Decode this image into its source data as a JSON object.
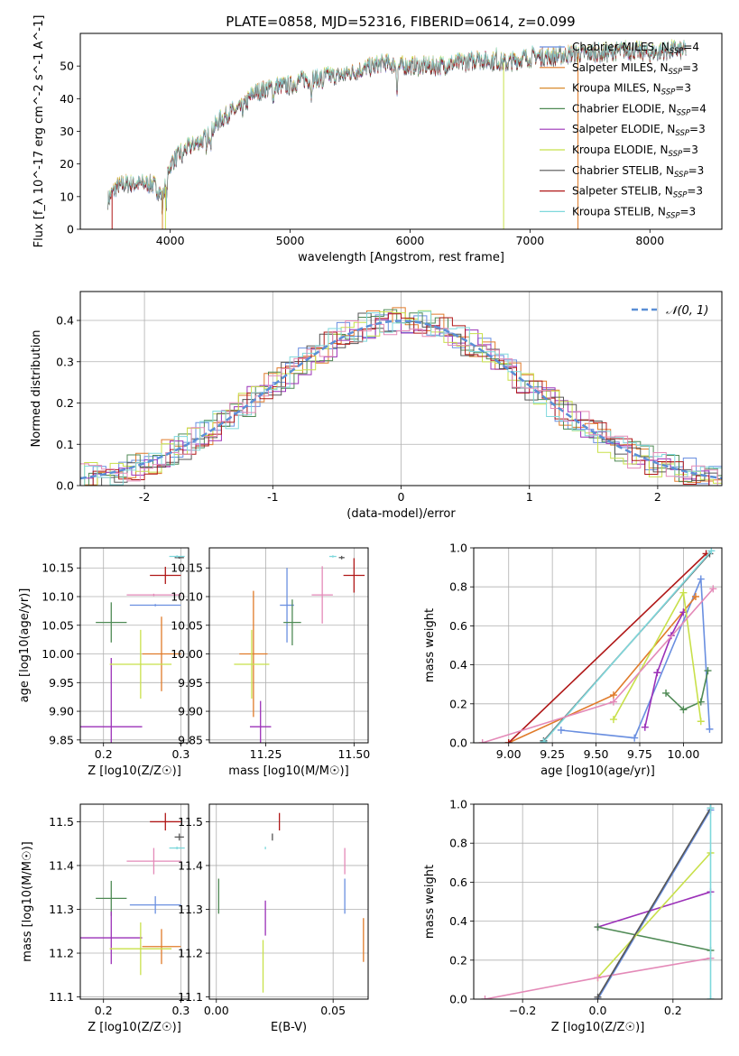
{
  "title": "PLATE=0858, MJD=52316, FIBERID=0614, z=0.099",
  "colors": {
    "Chabrier MILES": "#6a8fe0",
    "Salpeter MILES": "#e07b2a",
    "Kroupa MILES": "#d98a2e",
    "Chabrier ELODIE": "#4f8a55",
    "Salpeter ELODIE": "#9b30b8",
    "Kroupa ELODIE": "#c8e04a",
    "Chabrier STELIB": "#555555",
    "Salpeter STELIB": "#b01818",
    "Kroupa STELIB": "#7fd8dc",
    "pink": "#e48ab8",
    "normal_curve": "#5b8fd6",
    "grid": "#b0b0b0"
  },
  "chart_data": [
    {
      "id": "spectrum",
      "type": "line",
      "xlabel": "wavelength [Angstrom, rest frame]",
      "ylabel": "Flux [f_λ 10^-17 erg cm^-2 s^-1 A^-1]",
      "xlim": [
        3250,
        8600
      ],
      "ylim": [
        0,
        60
      ],
      "xticks": [
        4000,
        5000,
        6000,
        7000,
        8000
      ],
      "yticks": [
        0,
        10,
        20,
        30,
        40,
        50
      ],
      "legend_position": "top-right",
      "series": [
        {
          "name": "Chabrier MILES, N_SSP=4"
        },
        {
          "name": "Salpeter MILES, N_SSP=3"
        },
        {
          "name": "Kroupa MILES, N_SSP=3"
        },
        {
          "name": "Chabrier ELODIE, N_SSP=4"
        },
        {
          "name": "Salpeter ELODIE, N_SSP=3"
        },
        {
          "name": "Kroupa ELODIE, N_SSP=3"
        },
        {
          "name": "Chabrier STELIB, N_SSP=3"
        },
        {
          "name": "Salpeter STELIB, N_SSP=3"
        },
        {
          "name": "Kroupa STELIB, N_SSP=3"
        }
      ],
      "continuum": {
        "x": [
          3480,
          3550,
          3650,
          3750,
          3850,
          3920,
          3960,
          4000,
          4100,
          4200,
          4300,
          4400,
          4500,
          4600,
          4700,
          4800,
          4900,
          5000,
          5100,
          5200,
          5300,
          5400,
          5500,
          5600,
          5700,
          5800,
          5900,
          6000,
          6200,
          6400,
          6600,
          6800,
          7000,
          7200,
          7400,
          7600,
          7800,
          8000,
          8200,
          8300
        ],
        "y": [
          9,
          13,
          14,
          14,
          14,
          11,
          13,
          20,
          24,
          26,
          28,
          33,
          36,
          37,
          42,
          43,
          44,
          44,
          46,
          46,
          47,
          47,
          48,
          49,
          50,
          51,
          50,
          50,
          50,
          51,
          52,
          51,
          53,
          53,
          54,
          54,
          55,
          54,
          55,
          55
        ]
      }
    },
    {
      "id": "residuals",
      "type": "histogram",
      "xlabel": "(data-model)/error",
      "ylabel": "Normed distribution",
      "xlim": [
        -2.5,
        2.5
      ],
      "ylim": [
        0,
        0.47
      ],
      "xticks": [
        -2,
        -1,
        0,
        1,
        2
      ],
      "yticks": [
        0.0,
        0.1,
        0.2,
        0.3,
        0.4
      ],
      "legend": "𝒩(0, 1)",
      "legend_position": "top-right",
      "bin_width": 0.1,
      "series_count": 9
    },
    {
      "id": "age_vs_Z",
      "type": "scatter",
      "xlabel": "Z [log10(Z/Z☉)]",
      "ylabel": "age [log10(age/yr)]",
      "xlim": [
        0.17,
        0.31
      ],
      "ylim": [
        9.845,
        10.185
      ],
      "xticks": [
        0.2,
        0.3
      ],
      "yticks": [
        9.85,
        9.9,
        9.95,
        10.0,
        10.05,
        10.1,
        10.15
      ],
      "points": [
        {
          "series": "Chabrier MILES",
          "x": 0.267,
          "y": 10.085,
          "xerr": 0.033,
          "yerr": 0.002
        },
        {
          "series": "Salpeter MILES",
          "x": 0.275,
          "y": 10.0,
          "xerr": 0.025,
          "yerr": 0.065
        },
        {
          "series": "Chabrier ELODIE",
          "x": 0.21,
          "y": 10.055,
          "xerr": 0.02,
          "yerr": 0.035
        },
        {
          "series": "Salpeter ELODIE",
          "x": 0.21,
          "y": 9.873,
          "xerr": 0.04,
          "yerr": 0.12
        },
        {
          "series": "Kroupa ELODIE",
          "x": 0.248,
          "y": 9.982,
          "xerr": 0.04,
          "yerr": 0.06
        },
        {
          "series": "Chabrier STELIB",
          "x": 0.298,
          "y": 10.168,
          "xerr": 0.006,
          "yerr": 0.002
        },
        {
          "series": "Salpeter STELIB",
          "x": 0.28,
          "y": 10.137,
          "xerr": 0.02,
          "yerr": 0.015
        },
        {
          "series": "Kroupa STELIB",
          "x": 0.295,
          "y": 10.17,
          "xerr": 0.01,
          "yerr": 0.002
        },
        {
          "series": "pink",
          "x": 0.265,
          "y": 10.103,
          "xerr": 0.035,
          "yerr": 0.002
        }
      ]
    },
    {
      "id": "age_vs_mass",
      "type": "scatter",
      "xlabel": "mass [log10(M/M☉)]",
      "ylabel": "",
      "xlim": [
        11.09,
        11.54
      ],
      "ylim": [
        9.845,
        10.185
      ],
      "xticks": [
        11.25,
        11.5
      ],
      "yticks": [
        9.85,
        9.9,
        9.95,
        10.0,
        10.05,
        10.1,
        10.15
      ],
      "points": [
        {
          "series": "Chabrier MILES",
          "x": 11.31,
          "y": 10.085,
          "xerr": 0.02,
          "yerr": 0.065
        },
        {
          "series": "Salpeter MILES",
          "x": 11.215,
          "y": 10.0,
          "xerr": 0.04,
          "yerr": 0.11
        },
        {
          "series": "Chabrier ELODIE",
          "x": 11.325,
          "y": 10.055,
          "xerr": 0.025,
          "yerr": 0.04
        },
        {
          "series": "Salpeter ELODIE",
          "x": 11.235,
          "y": 9.873,
          "xerr": 0.03,
          "yerr": 0.045
        },
        {
          "series": "Kroupa ELODIE",
          "x": 11.21,
          "y": 9.982,
          "xerr": 0.05,
          "yerr": 0.06
        },
        {
          "series": "Chabrier STELIB",
          "x": 11.465,
          "y": 10.168,
          "xerr": 0.008,
          "yerr": 0.003
        },
        {
          "series": "Salpeter STELIB",
          "x": 11.5,
          "y": 10.137,
          "xerr": 0.03,
          "yerr": 0.03
        },
        {
          "series": "Kroupa STELIB",
          "x": 11.44,
          "y": 10.17,
          "xerr": 0.01,
          "yerr": 0.002
        },
        {
          "series": "pink",
          "x": 11.41,
          "y": 10.103,
          "xerr": 0.03,
          "yerr": 0.05
        }
      ]
    },
    {
      "id": "mass_weight_vs_age",
      "type": "line",
      "xlabel": "age [log10(age/yr)]",
      "ylabel": "mass weight",
      "xlim": [
        8.8,
        10.22
      ],
      "ylim": [
        0,
        1.0
      ],
      "xticks": [
        9.0,
        9.25,
        9.5,
        9.75,
        10.0
      ],
      "yticks": [
        0.0,
        0.2,
        0.4,
        0.6,
        0.8,
        1.0
      ],
      "series": [
        {
          "name": "Chabrier MILES",
          "x": [
            9.3,
            9.72,
            10.1,
            10.15
          ],
          "y": [
            0.065,
            0.025,
            0.84,
            0.07
          ]
        },
        {
          "name": "Salpeter MILES",
          "x": [
            9.0,
            9.6,
            10.07
          ],
          "y": [
            0.0,
            0.245,
            0.75
          ]
        },
        {
          "name": "Chabrier ELODIE",
          "x": [
            9.9,
            10.0,
            10.1,
            10.14
          ],
          "y": [
            0.255,
            0.17,
            0.21,
            0.37
          ]
        },
        {
          "name": "Salpeter ELODIE",
          "x": [
            9.78,
            9.85,
            9.93,
            10.0
          ],
          "y": [
            0.08,
            0.36,
            0.55,
            0.67
          ]
        },
        {
          "name": "Kroupa ELODIE",
          "x": [
            9.6,
            10.0,
            10.1
          ],
          "y": [
            0.12,
            0.77,
            0.11
          ]
        },
        {
          "name": "Chabrier STELIB",
          "x": [
            9.2,
            10.15
          ],
          "y": [
            0.01,
            0.97
          ]
        },
        {
          "name": "Salpeter STELIB",
          "x": [
            9.0,
            10.13
          ],
          "y": [
            0.0,
            0.97
          ]
        },
        {
          "name": "Kroupa STELIB",
          "x": [
            9.2,
            10.16
          ],
          "y": [
            0.005,
            0.985
          ]
        },
        {
          "name": "pink",
          "x": [
            8.85,
            9.6,
            10.17
          ],
          "y": [
            0.0,
            0.21,
            0.79
          ]
        }
      ]
    },
    {
      "id": "mass_vs_Z",
      "type": "scatter",
      "xlabel": "Z [log10(Z/Z☉)]",
      "ylabel": "mass [log10(M/M☉)]",
      "xlim": [
        0.17,
        0.31
      ],
      "ylim": [
        11.095,
        11.54
      ],
      "xticks": [
        0.2,
        0.3
      ],
      "yticks": [
        11.1,
        11.2,
        11.3,
        11.4,
        11.5
      ],
      "points": [
        {
          "series": "Chabrier MILES",
          "x": 0.267,
          "y": 11.31,
          "xerr": 0.033,
          "yerr": 0.02
        },
        {
          "series": "Salpeter MILES",
          "x": 0.275,
          "y": 11.215,
          "xerr": 0.025,
          "yerr": 0.04
        },
        {
          "series": "Chabrier ELODIE",
          "x": 0.21,
          "y": 11.325,
          "xerr": 0.02,
          "yerr": 0.04
        },
        {
          "series": "Salpeter ELODIE",
          "x": 0.21,
          "y": 11.235,
          "xerr": 0.04,
          "yerr": 0.06
        },
        {
          "series": "Kroupa ELODIE",
          "x": 0.248,
          "y": 11.21,
          "xerr": 0.04,
          "yerr": 0.06
        },
        {
          "series": "Chabrier STELIB",
          "x": 0.298,
          "y": 11.465,
          "xerr": 0.006,
          "yerr": 0.008
        },
        {
          "series": "Salpeter STELIB",
          "x": 0.28,
          "y": 11.5,
          "xerr": 0.02,
          "yerr": 0.02
        },
        {
          "series": "Kroupa STELIB",
          "x": 0.295,
          "y": 11.44,
          "xerr": 0.01,
          "yerr": 0.003
        },
        {
          "series": "pink",
          "x": 0.265,
          "y": 11.41,
          "xerr": 0.035,
          "yerr": 0.03
        }
      ]
    },
    {
      "id": "mass_vs_ebv",
      "type": "scatter",
      "xlabel": "E(B-V)",
      "ylabel": "",
      "xlim": [
        -0.003,
        0.065
      ],
      "ylim": [
        11.095,
        11.54
      ],
      "xticks": [
        0.0,
        0.05
      ],
      "yticks": [
        11.1,
        11.2,
        11.3,
        11.4,
        11.5
      ],
      "points": [
        {
          "series": "Chabrier MILES",
          "x": 0.055,
          "y": 11.33,
          "yerr": 0.04
        },
        {
          "series": "Salpeter MILES",
          "x": 0.063,
          "y": 11.23,
          "yerr": 0.05
        },
        {
          "series": "Chabrier ELODIE",
          "x": 0.001,
          "y": 11.33,
          "yerr": 0.04
        },
        {
          "series": "Salpeter ELODIE",
          "x": 0.021,
          "y": 11.28,
          "yerr": 0.04
        },
        {
          "series": "Kroupa ELODIE",
          "x": 0.02,
          "y": 11.17,
          "yerr": 0.06
        },
        {
          "series": "Chabrier STELIB",
          "x": 0.024,
          "y": 11.465,
          "yerr": 0.008
        },
        {
          "series": "Salpeter STELIB",
          "x": 0.027,
          "y": 11.5,
          "yerr": 0.02
        },
        {
          "series": "Kroupa STELIB",
          "x": 0.021,
          "y": 11.44,
          "yerr": 0.003
        },
        {
          "series": "pink",
          "x": 0.055,
          "y": 11.41,
          "yerr": 0.03
        }
      ]
    },
    {
      "id": "mass_weight_vs_Z",
      "type": "line",
      "xlabel": "Z [log10(Z/Z☉)]",
      "ylabel": "mass weight",
      "xlim": [
        -0.33,
        0.33
      ],
      "ylim": [
        0,
        1.0
      ],
      "xticks": [
        -0.2,
        0.0,
        0.2
      ],
      "yticks": [
        0.0,
        0.2,
        0.4,
        0.6,
        0.8,
        1.0
      ],
      "series": [
        {
          "name": "Chabrier MILES",
          "x": [
            0.0,
            0.3
          ],
          "y": [
            0.0,
            0.97
          ]
        },
        {
          "name": "Salpeter ELODIE",
          "x": [
            0.0,
            0.3
          ],
          "y": [
            0.37,
            0.55
          ]
        },
        {
          "name": "Chabrier ELODIE",
          "x": [
            0.0,
            0.3
          ],
          "y": [
            0.37,
            0.25
          ]
        },
        {
          "name": "Kroupa ELODIE",
          "x": [
            0.0,
            0.3
          ],
          "y": [
            0.11,
            0.75
          ]
        },
        {
          "name": "pink",
          "x": [
            -0.3,
            0.0,
            0.3
          ],
          "y": [
            0.0,
            0.11,
            0.21
          ]
        },
        {
          "name": "Chabrier STELIB",
          "x": [
            0.0,
            0.3
          ],
          "y": [
            0.01,
            0.98
          ]
        },
        {
          "name": "Kroupa STELIB",
          "x": [
            0.3,
            0.3
          ],
          "y": [
            0.0,
            0.98
          ]
        }
      ]
    }
  ]
}
